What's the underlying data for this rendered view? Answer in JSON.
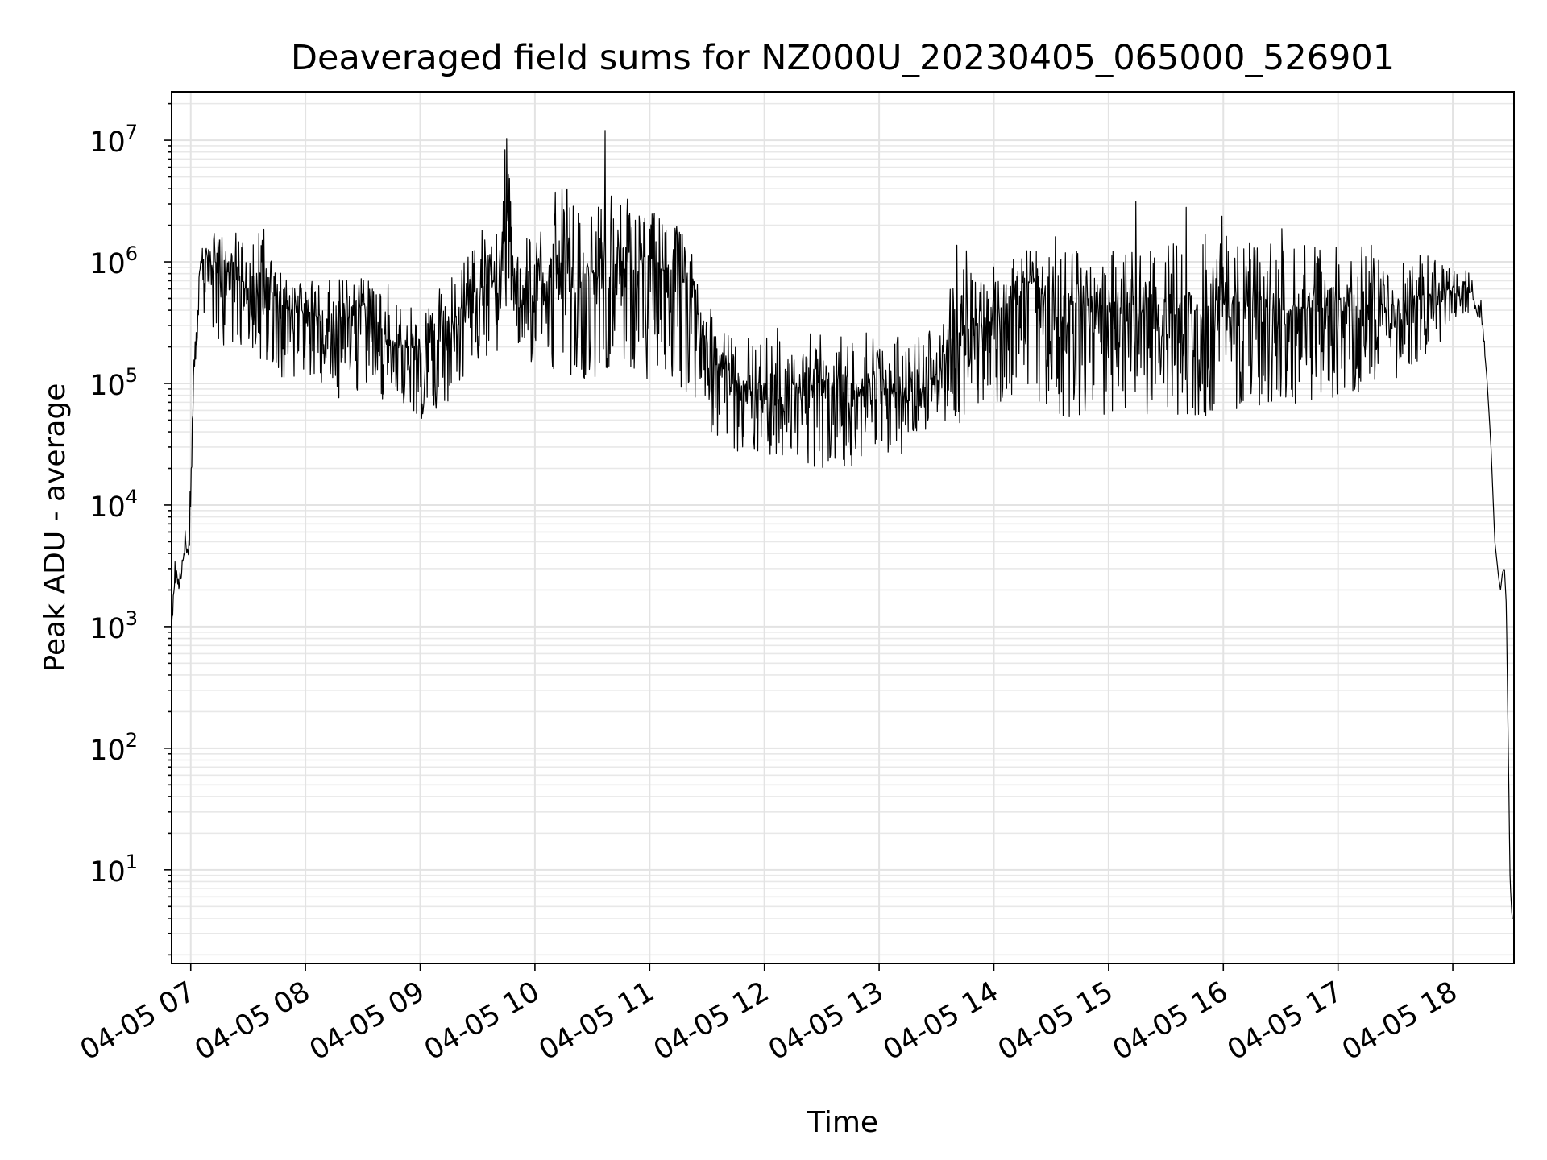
{
  "chart_data": {
    "type": "line",
    "title": "Deaveraged field sums for NZ000U_20230405_065000_526901",
    "xlabel": "Time",
    "ylabel": "Peak ADU - average",
    "yscale": "log",
    "ylim": [
      1.7,
      25000000
    ],
    "xlim": [
      "2023-04-05 06:50",
      "2023-04-05 18:32"
    ],
    "grid": true,
    "xticks": [
      "04-05 07",
      "04-05 08",
      "04-05 09",
      "04-05 10",
      "04-05 11",
      "04-05 12",
      "04-05 13",
      "04-05 14",
      "04-05 15",
      "04-05 16",
      "04-05 17",
      "04-05 18"
    ],
    "yticks": [
      {
        "base": "10",
        "exp": "1"
      },
      {
        "base": "10",
        "exp": "2"
      },
      {
        "base": "10",
        "exp": "3"
      },
      {
        "base": "10",
        "exp": "4"
      },
      {
        "base": "10",
        "exp": "5"
      },
      {
        "base": "10",
        "exp": "6"
      },
      {
        "base": "10",
        "exp": "7"
      }
    ],
    "series": [
      {
        "color": "#000000",
        "x": [
          "2023-04-05 06:50",
          "2023-04-05 06:52",
          "2023-04-05 06:54",
          "2023-04-05 06:57",
          "2023-04-05 06:59",
          "2023-04-05 07:00",
          "2023-04-05 07:02",
          "2023-04-05 07:05",
          "2023-04-05 07:08",
          "2023-04-05 07:10",
          "2023-04-05 07:13",
          "2023-04-05 07:15",
          "2023-04-05 07:20",
          "2023-04-05 07:25",
          "2023-04-05 07:30",
          "2023-04-05 07:35",
          "2023-04-05 07:40",
          "2023-04-05 07:45",
          "2023-04-05 07:50",
          "2023-04-05 08:00",
          "2023-04-05 08:15",
          "2023-04-05 08:30",
          "2023-04-05 08:45",
          "2023-04-05 09:00",
          "2023-04-05 09:15",
          "2023-04-05 09:30",
          "2023-04-05 09:40",
          "2023-04-05 09:45",
          "2023-04-05 09:50",
          "2023-04-05 10:00",
          "2023-04-05 10:15",
          "2023-04-05 10:20",
          "2023-04-05 10:30",
          "2023-04-05 10:45",
          "2023-04-05 11:00",
          "2023-04-05 11:10",
          "2023-04-05 11:20",
          "2023-04-05 11:35",
          "2023-04-05 11:45",
          "2023-04-05 11:55",
          "2023-04-05 12:00",
          "2023-04-05 12:15",
          "2023-04-05 12:30",
          "2023-04-05 12:45",
          "2023-04-05 13:00",
          "2023-04-05 13:15",
          "2023-04-05 13:30",
          "2023-04-05 13:40",
          "2023-04-05 13:50",
          "2023-04-05 14:00",
          "2023-04-05 14:10",
          "2023-04-05 14:20",
          "2023-04-05 14:30",
          "2023-04-05 15:00",
          "2023-04-05 15:30",
          "2023-04-05 16:00",
          "2023-04-05 16:30",
          "2023-04-05 17:00",
          "2023-04-05 17:30",
          "2023-04-05 17:50",
          "2023-04-05 18:00",
          "2023-04-05 18:10",
          "2023-04-05 18:15",
          "2023-04-05 18:18",
          "2023-04-05 18:20",
          "2023-04-05 18:22",
          "2023-04-05 18:24",
          "2023-04-05 18:25",
          "2023-04-05 18:26",
          "2023-04-05 18:27",
          "2023-04-05 18:28",
          "2023-04-05 18:29",
          "2023-04-05 18:30",
          "2023-04-05 18:31",
          "2023-04-05 18:32"
        ],
        "y": [
          1000,
          3000,
          2000,
          5000,
          3000,
          20000,
          150000,
          1000000,
          1200000,
          900000,
          1000000,
          800000,
          600000,
          1000000,
          500000,
          800000,
          600000,
          500000,
          400000,
          400000,
          300000,
          400000,
          200000,
          200000,
          250000,
          600000,
          700000,
          3000000,
          400000,
          500000,
          1000000,
          600000,
          800000,
          900000,
          700000,
          900000,
          600000,
          150000,
          100000,
          80000,
          100000,
          90000,
          100000,
          80000,
          110000,
          70000,
          120000,
          250000,
          300000,
          350000,
          500000,
          700000,
          500000,
          400000,
          350000,
          450000,
          400000,
          420000,
          450000,
          550000,
          600000,
          550000,
          400000,
          100000,
          30000,
          5000,
          2500,
          2000,
          2800,
          3000,
          1500,
          100,
          8,
          4,
          4
        ],
        "noise_low": [
          1.0,
          1.5,
          1.0,
          1.5,
          1.5,
          2.0,
          1.5,
          3.0,
          3.0,
          3.0,
          4.0,
          5.0,
          5.0,
          5.0,
          4.0,
          5.0,
          5.0,
          4.0,
          4.0,
          4.0,
          4.0,
          5.0,
          3.0,
          4.0,
          4.0,
          4.0,
          4.0,
          8.0,
          5.0,
          4.0,
          8.0,
          6.0,
          8.0,
          6.0,
          7.0,
          8.0,
          8.0,
          5.0,
          4.0,
          3.0,
          4.0,
          4.0,
          5.0,
          4.0,
          4.0,
          3.0,
          3.0,
          6.0,
          5.0,
          5.0,
          8.0,
          10.0,
          10.0,
          8.0,
          8.0,
          8.0,
          6.0,
          6.0,
          5.0,
          3.0,
          2.0,
          1.5,
          1.2,
          1.0,
          1.0,
          1.0,
          1.0,
          1.0,
          1.0,
          1.0,
          1.0,
          1.0,
          1.0,
          1.0,
          1.0
        ],
        "noise_high": [
          1.0,
          1.5,
          1.5,
          1.5,
          1.5,
          2.0,
          1.5,
          1.5,
          1.3,
          2.0,
          2.0,
          2.5,
          2.5,
          3.0,
          2.0,
          2.5,
          2.5,
          2.0,
          2.0,
          2.0,
          2.5,
          2.0,
          2.5,
          2.0,
          3.0,
          2.5,
          3.0,
          4.0,
          3.0,
          4.0,
          5.0,
          5.0,
          5.0,
          4.0,
          4.0,
          3.0,
          2.5,
          2.0,
          2.5,
          3.0,
          3.0,
          3.0,
          2.5,
          3.0,
          3.0,
          3.0,
          3.0,
          3.5,
          3.0,
          3.0,
          2.5,
          2.0,
          2.5,
          3.5,
          4.0,
          3.5,
          3.5,
          3.5,
          3.0,
          2.0,
          1.6,
          1.5,
          1.3,
          1.0,
          1.0,
          1.0,
          1.0,
          1.0,
          1.0,
          1.0,
          1.0,
          1.0,
          1.0,
          1.0,
          1.0
        ]
      }
    ]
  }
}
